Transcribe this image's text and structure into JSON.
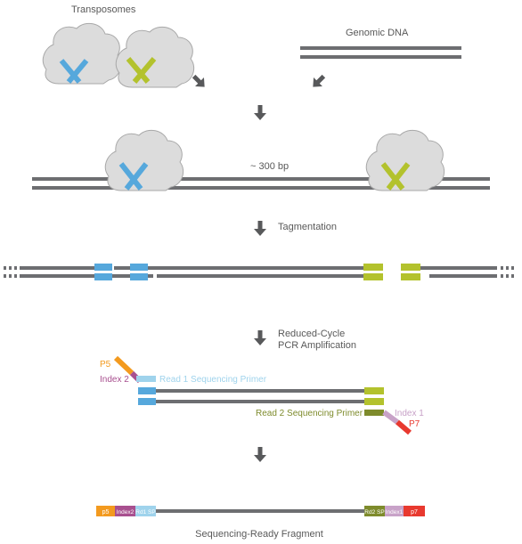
{
  "labels": {
    "transposomes": "Transposomes",
    "genomic_dna": "Genomic DNA",
    "fragment_size": "~ 300 bp",
    "tagmentation": "Tagmentation",
    "reduced_cycle": "Reduced-Cycle",
    "pcr_amplification": "PCR Amplification",
    "p5": "P5",
    "index2": "Index 2",
    "read1_primer": "Read 1 Sequencing Primer",
    "read2_primer": "Read 2 Sequencing Primer",
    "index1": "Index 1",
    "p7": "P7",
    "final_fragment": "Sequencing-Ready Fragment"
  },
  "final_segments": {
    "p5": "p5",
    "index2": "Index2",
    "rd1sp": "Rd1 SP",
    "rd2sp": "Rd2 SP",
    "index1": "Index1",
    "p7": "p7"
  },
  "colors": {
    "dna": "#6d6e71",
    "blob_fill": "#dcdcdc",
    "blob_stroke": "#a8a8a8",
    "arrow": "#58595b",
    "blue": "#56a8dc",
    "green": "#b3c22d",
    "orange": "#f39a1f",
    "purple": "#a8508f",
    "light_blue": "#9fd3ec",
    "olive": "#7e8b2c",
    "lavender": "#c8a2c8",
    "red": "#e8392f",
    "text": "#595959"
  }
}
